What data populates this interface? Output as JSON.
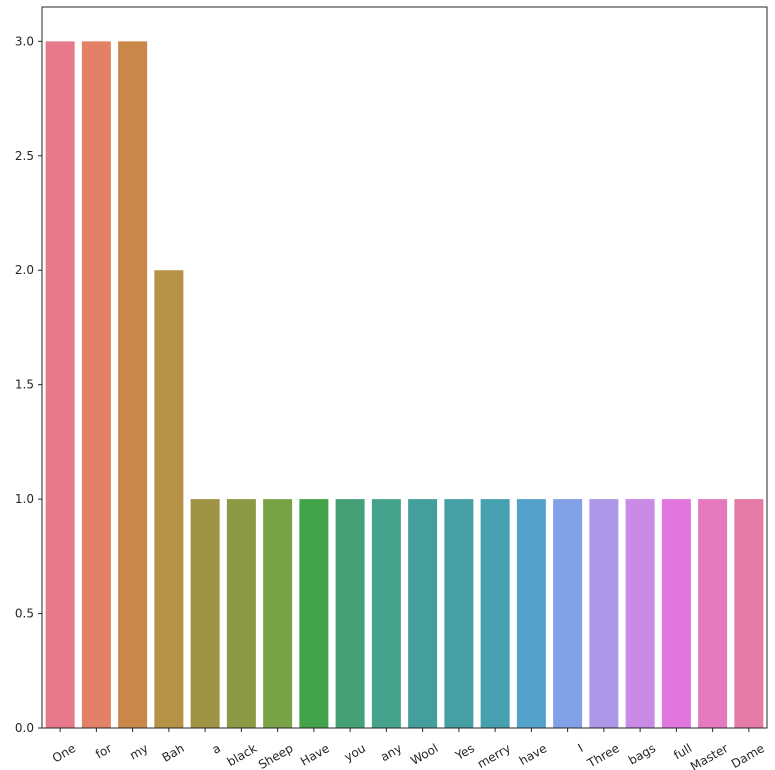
{
  "chart_data": {
    "type": "bar",
    "categories": [
      "One",
      "for",
      "my",
      "Bah",
      "a",
      "black",
      "Sheep",
      "Have",
      "you",
      "any",
      "Wool",
      "Yes",
      "merry",
      "have",
      "I",
      "Three",
      "bags",
      "full",
      "Master",
      "Dame"
    ],
    "values": [
      3,
      3,
      3,
      2,
      1,
      1,
      1,
      1,
      1,
      1,
      1,
      1,
      1,
      1,
      1,
      1,
      1,
      1,
      1,
      1
    ],
    "colors": [
      "#e6798b",
      "#e38167",
      "#c9884a",
      "#b59245",
      "#9f9344",
      "#8c9a45",
      "#79a247",
      "#43a34a",
      "#45a175",
      "#45a28b",
      "#449e9b",
      "#459fa5",
      "#47a0b0",
      "#54a2cc",
      "#81a0e6",
      "#ad97e9",
      "#c98be6",
      "#e076de",
      "#e579be",
      "#e57aa7"
    ],
    "title": "",
    "xlabel": "",
    "ylabel": "",
    "ylim": [
      0,
      3.15
    ],
    "yticks": [
      "0.0",
      "0.5",
      "1.0",
      "1.5",
      "2.0",
      "2.5",
      "3.0"
    ],
    "ytick_values": [
      0,
      0.5,
      1.0,
      1.5,
      2.0,
      2.5,
      3.0
    ],
    "grid": false,
    "legend": "none"
  }
}
